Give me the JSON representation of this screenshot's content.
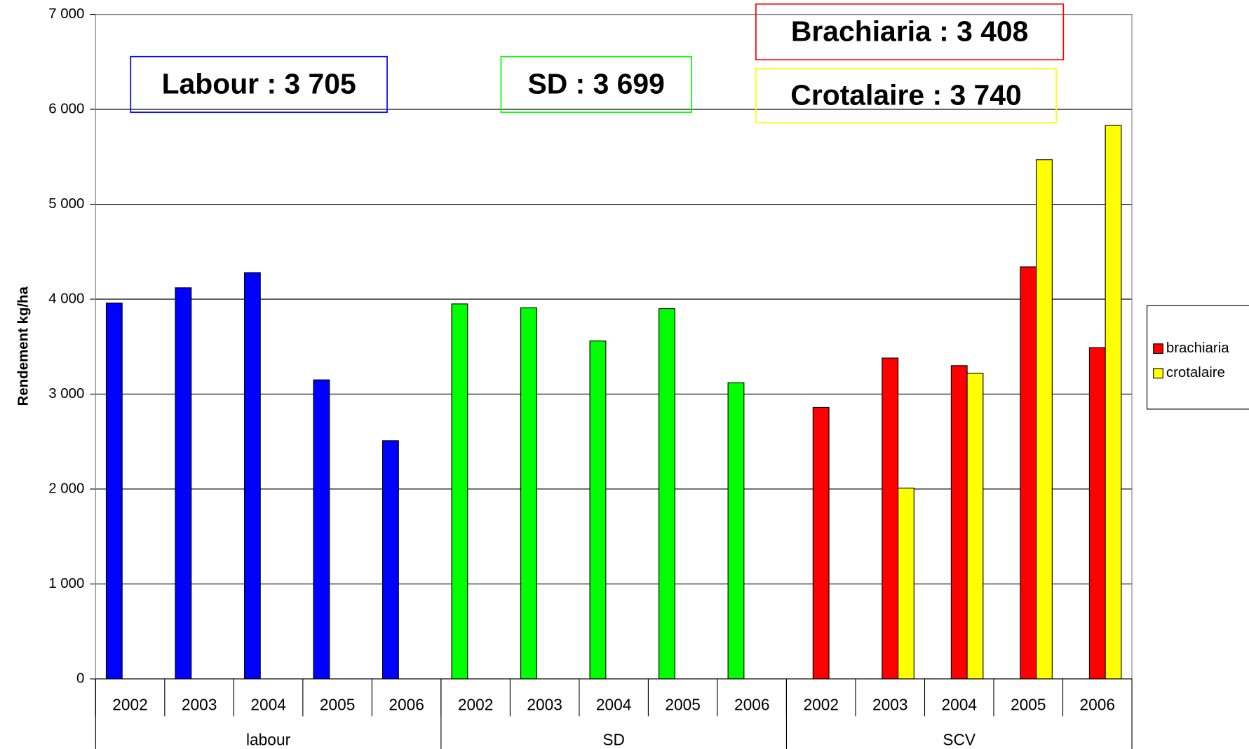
{
  "chart_data": {
    "type": "bar",
    "y_label": "Rendement  kg/ha",
    "categories": [
      "2002",
      "2003",
      "2004",
      "2005",
      "2006",
      "2002",
      "2003",
      "2004",
      "2005",
      "2006",
      "2002",
      "2003",
      "2004",
      "2005",
      "2006"
    ],
    "groups": [
      {
        "label": "labour",
        "span": 5
      },
      {
        "label": "SD",
        "span": 5
      },
      {
        "label": "SCV",
        "span": 5
      }
    ],
    "series": [
      {
        "colors": [
          "#0000ff",
          "#0000ff",
          "#0000ff",
          "#0000ff",
          "#0000ff",
          "#00ff00",
          "#00ff00",
          "#00ff00",
          "#00ff00",
          "#00ff00",
          null,
          null,
          null,
          null,
          null
        ],
        "values": [
          3960,
          4120,
          4280,
          3150,
          2510,
          3950,
          3910,
          3560,
          3900,
          3120,
          null,
          null,
          null,
          null,
          null
        ]
      },
      {
        "name": "brachiaria",
        "color": "#ff0000",
        "values": [
          null,
          null,
          null,
          null,
          null,
          null,
          null,
          null,
          null,
          null,
          2860,
          3380,
          3300,
          4340,
          3490
        ]
      },
      {
        "name": "crotalaire",
        "color": "#ffff00",
        "values": [
          null,
          null,
          null,
          null,
          null,
          null,
          null,
          null,
          null,
          null,
          null,
          2010,
          3220,
          5470,
          5830
        ]
      }
    ],
    "ylim": [
      0,
      7000
    ],
    "yticks": [
      0,
      {
        "value": 1000,
        "label": "1 000"
      },
      {
        "value": 2000,
        "label": "2 000"
      },
      {
        "value": 3000,
        "label": "3 000"
      },
      {
        "value": 4000,
        "label": "4 000"
      },
      {
        "value": 5000,
        "label": "5 000"
      },
      {
        "value": 6000,
        "label": "6 000"
      },
      {
        "value": 7000,
        "label": "7 000"
      }
    ],
    "grid": true,
    "legend": "right",
    "annotations": [
      {
        "text": "Labour : 3 705",
        "color": "#0000ff"
      },
      {
        "text": "SD : 3 699",
        "color": "#00ff00"
      },
      {
        "text": "Brachiaria : 3 408",
        "color": "#ff0000"
      },
      {
        "text": "Crotalaire : 3 740",
        "color": "#ffff00"
      }
    ]
  }
}
